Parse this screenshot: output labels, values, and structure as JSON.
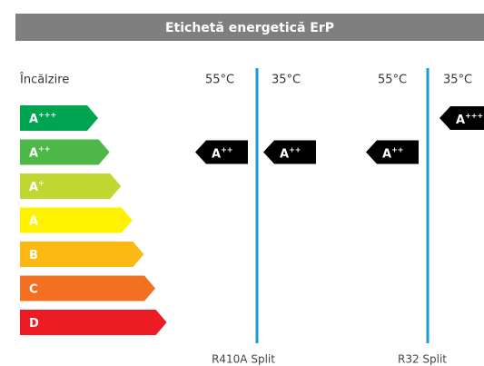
{
  "header": {
    "title": "Etichetă energetică ErP"
  },
  "row_label": "Încălzire",
  "classes": [
    {
      "letter": "A",
      "sup": "+++",
      "color": "#00a551"
    },
    {
      "letter": "A",
      "sup": "++",
      "color": "#4db848"
    },
    {
      "letter": "A",
      "sup": "+",
      "color": "#bfd730"
    },
    {
      "letter": "A",
      "sup": "",
      "color": "#fff200"
    },
    {
      "letter": "B",
      "sup": "",
      "color": "#fdb913"
    },
    {
      "letter": "C",
      "sup": "",
      "color": "#f36f21"
    },
    {
      "letter": "D",
      "sup": "",
      "color": "#ed1c24"
    }
  ],
  "groups": [
    {
      "name": "R410A Split",
      "columns": [
        {
          "temp": "55°C",
          "rating": {
            "letter": "A",
            "sup": "++"
          }
        },
        {
          "temp": "35°C",
          "rating": {
            "letter": "A",
            "sup": "++"
          }
        }
      ]
    },
    {
      "name": "R32 Split",
      "columns": [
        {
          "temp": "55°C",
          "rating": {
            "letter": "A",
            "sup": "++"
          }
        },
        {
          "temp": "35°C",
          "rating": {
            "letter": "A",
            "sup": "+++"
          }
        }
      ]
    }
  ]
}
